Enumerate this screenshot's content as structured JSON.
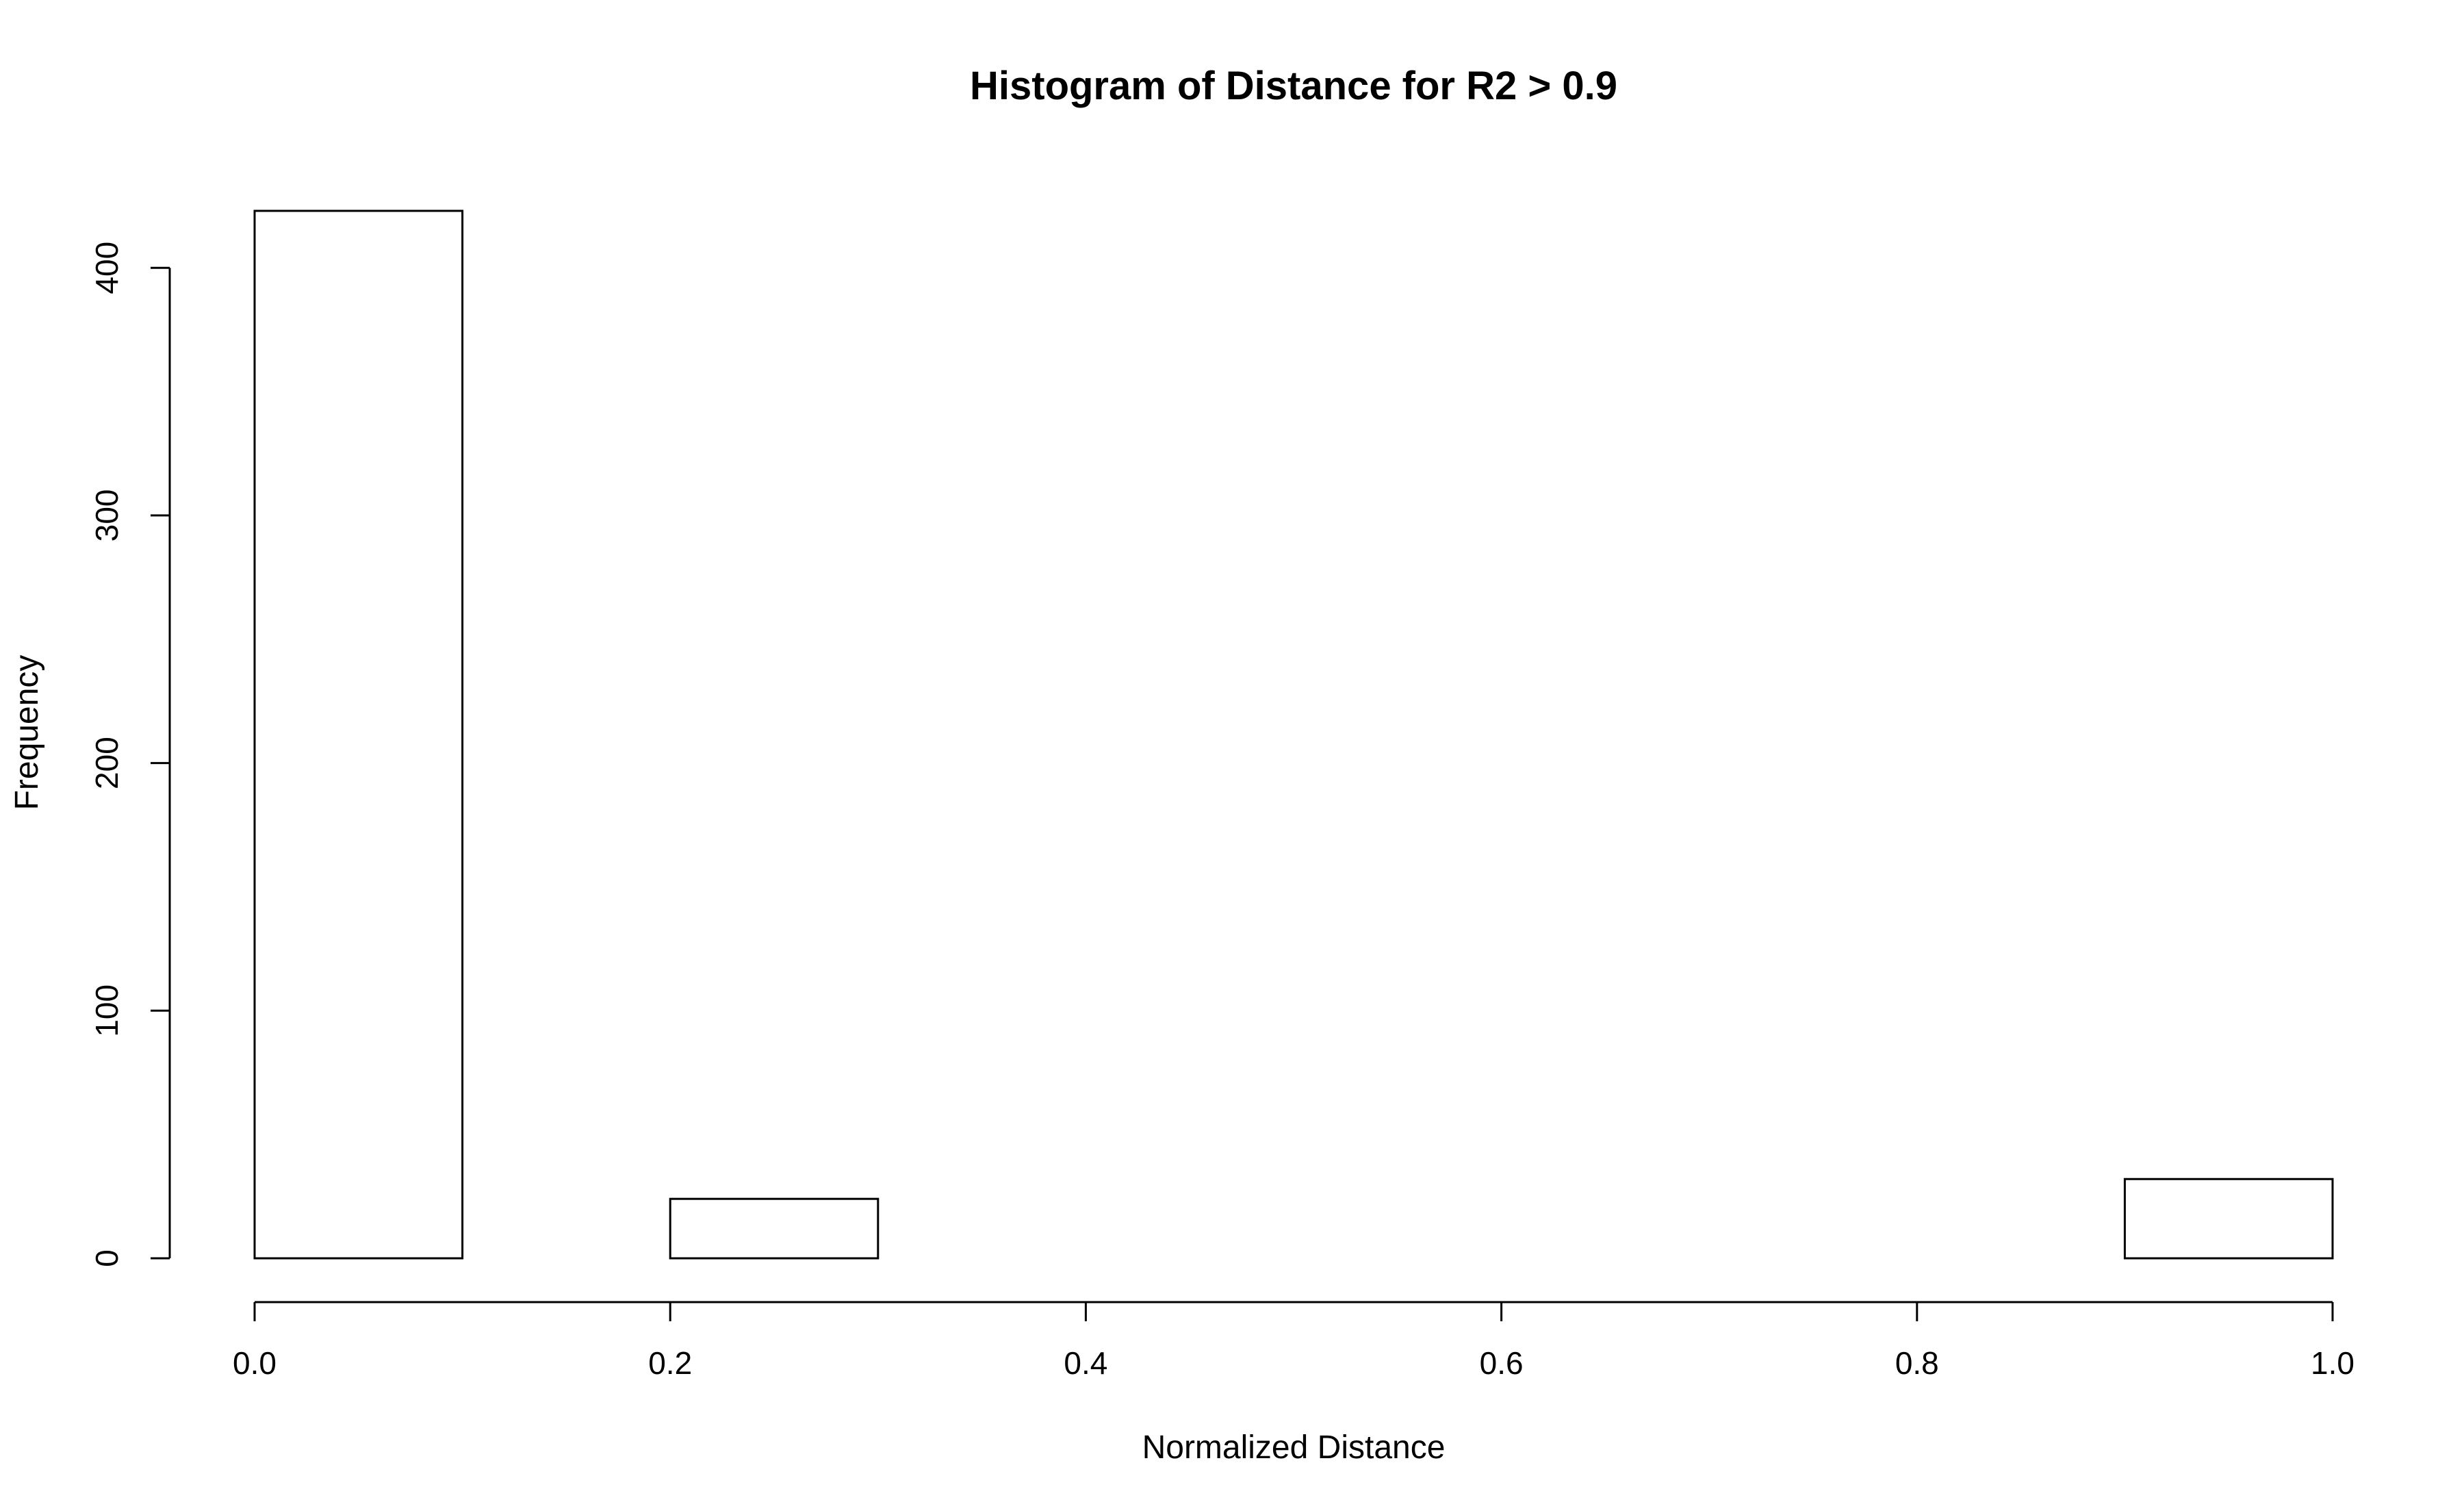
{
  "chart_data": {
    "type": "bar",
    "title": "Histogram of Distance for R2 > 0.9",
    "xlabel": "Normalized Distance",
    "ylabel": "Frequency",
    "bins": [
      {
        "start": 0.0,
        "end": 0.1,
        "count": 423
      },
      {
        "start": 0.1,
        "end": 0.2,
        "count": 0
      },
      {
        "start": 0.2,
        "end": 0.3,
        "count": 24
      },
      {
        "start": 0.3,
        "end": 0.4,
        "count": 0
      },
      {
        "start": 0.4,
        "end": 0.5,
        "count": 0
      },
      {
        "start": 0.5,
        "end": 0.6,
        "count": 0
      },
      {
        "start": 0.6,
        "end": 0.7,
        "count": 0
      },
      {
        "start": 0.7,
        "end": 0.8,
        "count": 0
      },
      {
        "start": 0.8,
        "end": 0.9,
        "count": 0
      },
      {
        "start": 0.9,
        "end": 1.0,
        "count": 32
      }
    ],
    "xlim": [
      0.0,
      1.0
    ],
    "ylim": [
      0,
      423
    ],
    "x_ticks": [
      0.0,
      0.2,
      0.4,
      0.6,
      0.8,
      1.0
    ],
    "x_tick_labels": [
      "0.0",
      "0.2",
      "0.4",
      "0.6",
      "0.8",
      "1.0"
    ],
    "y_ticks": [
      0,
      100,
      200,
      300,
      400
    ],
    "y_tick_labels": [
      "0",
      "100",
      "200",
      "300",
      "400"
    ],
    "grid": false,
    "colors": {
      "bar_fill": "#ffffff",
      "bar_stroke": "#000000"
    }
  }
}
